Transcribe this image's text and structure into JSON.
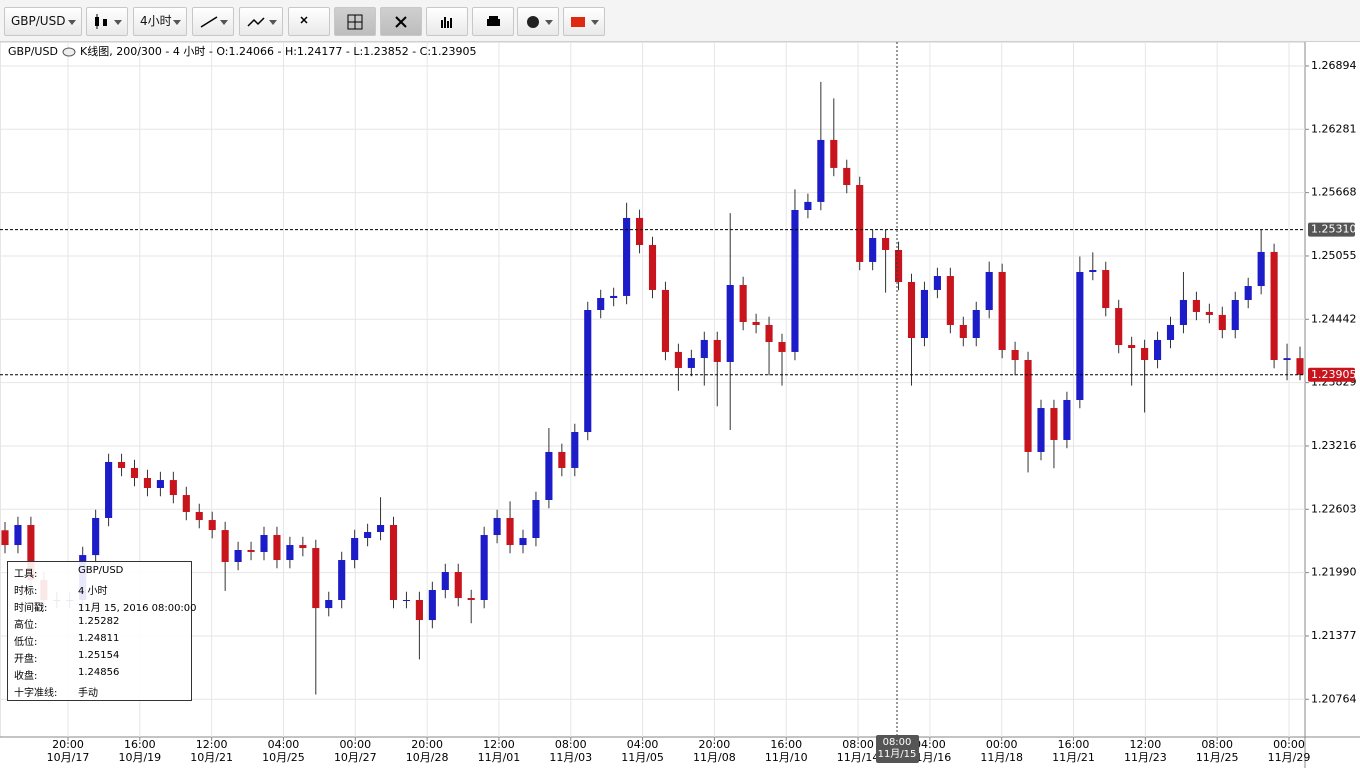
{
  "toolbar": {
    "symbol": "GBP/USD",
    "timeframe": "4小时"
  },
  "header": {
    "symbol": "GBP/USD",
    "info": "K线图, 200/300 - 4 小时 - O:1.24066 - H:1.24177 - L:1.23852 - C:1.23905"
  },
  "tooltip": {
    "rows": [
      [
        "工具:",
        "GBP/USD"
      ],
      [
        "时标:",
        "4 小时"
      ],
      [
        "时间戳:",
        "11月 15, 2016 08:00:00"
      ],
      [
        "高位:",
        "1.25282"
      ],
      [
        "低位:",
        "1.24811"
      ],
      [
        "开盘:",
        "1.25154"
      ],
      [
        "收盘:",
        "1.24856"
      ],
      [
        "十字准线:",
        "手动"
      ]
    ]
  },
  "crosshair": {
    "time": "08:00",
    "date": "11月/15"
  },
  "chart_data": {
    "type": "candlestick",
    "up_color": "#1c1cc8",
    "down_color": "#c8141c",
    "ylim": [
      1.20399,
      1.27126
    ],
    "yticks": [
      1.26894,
      1.26281,
      1.25668,
      1.25055,
      1.24442,
      1.23829,
      1.23216,
      1.22603,
      {
        "value": 1.2199,
        "label": "1.21990"
      },
      1.21377,
      1.20764
    ],
    "grid": true,
    "xlabels": [
      [
        "20:00",
        "10月/17"
      ],
      [
        "16:00",
        "10月/19"
      ],
      [
        "12:00",
        "10月/21"
      ],
      [
        "04:00",
        "10月/25"
      ],
      [
        "00:00",
        "10月/27"
      ],
      [
        "20:00",
        "10月/28"
      ],
      [
        "12:00",
        "11月/01"
      ],
      [
        "08:00",
        "11月/03"
      ],
      [
        "04:00",
        "11月/05"
      ],
      [
        "20:00",
        "11月/08"
      ],
      [
        "16:00",
        "11月/10"
      ],
      [
        "08:00",
        "11月/14"
      ],
      [
        "04:00",
        "11月/16"
      ],
      [
        "00:00",
        "11月/18"
      ],
      [
        "16:00",
        "11月/21"
      ],
      [
        "12:00",
        "11月/23"
      ],
      [
        "08:00",
        "11月/25"
      ],
      [
        "00:00",
        "11月/29"
      ]
    ],
    "hlines": [
      {
        "value": 1.2531,
        "label": "1.25310",
        "color": "#555"
      },
      {
        "value": 1.23905,
        "label": "1.23905",
        "color": "#c8141c"
      }
    ],
    "open": [
      1.224,
      1.22257,
      1.22451,
      1.21918,
      1.21725,
      1.21725,
      1.21725,
      1.2216,
      1.22519,
      1.23061,
      1.23003,
      1.22906,
      1.22809,
      1.22886,
      1.22741,
      1.22577,
      1.22499,
      1.22402,
      1.22093,
      1.22209,
      1.2219,
      1.22354,
      1.22112,
      1.22257,
      1.22228,
      1.21647,
      1.21725,
      1.22112,
      1.22325,
      1.22383,
      1.22451,
      1.21725,
      1.21725,
      1.21531,
      1.21822,
      1.21996,
      1.21744,
      1.21725,
      1.22354,
      1.22519,
      1.22257,
      1.22325,
      1.22693,
      1.23158,
      1.23003,
      1.23351,
      1.24532,
      1.24648,
      1.24668,
      1.25423,
      1.25161,
      1.24726,
      1.24126,
      1.23971,
      1.24067,
      1.24242,
      1.24029,
      1.24774,
      1.24416,
      1.24387,
      1.24222,
      1.24126,
      1.255,
      1.25578,
      1.26178,
      1.25907,
      1.25742,
      1.24997,
      1.25229,
      1.25113,
      1.24803,
      1.24261,
      1.24726,
      1.24861,
      1.24387,
      1.24261,
      1.24532,
      1.249,
      1.24145,
      1.24048,
      1.23158,
      1.23583,
      1.23274,
      1.23661,
      1.249,
      1.24919,
      1.24551,
      1.24193,
      1.24164,
      1.24048,
      1.24242,
      1.24387,
      1.24629,
      1.24513,
      1.24484,
      1.24338,
      1.24629,
      1.24764,
      1.25094,
      1.24048,
      1.24066
    ],
    "high": [
      1.2248,
      1.22531,
      1.22531,
      1.21998,
      1.21805,
      1.21805,
      1.2224,
      1.22599,
      1.23141,
      1.23141,
      1.23083,
      1.22986,
      1.22966,
      1.22966,
      1.22821,
      1.22657,
      1.22579,
      1.22482,
      1.22289,
      1.22289,
      1.22434,
      1.22434,
      1.22337,
      1.22337,
      1.22308,
      1.21805,
      1.22192,
      1.22405,
      1.22463,
      1.2272,
      1.22531,
      1.21805,
      1.21805,
      1.21902,
      1.22076,
      1.22076,
      1.21824,
      1.22434,
      1.22599,
      1.2268,
      1.22405,
      1.22773,
      1.2339,
      1.23238,
      1.23431,
      1.24612,
      1.24728,
      1.24748,
      1.2557,
      1.25503,
      1.25241,
      1.24806,
      1.24206,
      1.24147,
      1.24322,
      1.24322,
      1.2547,
      1.24854,
      1.24496,
      1.24467,
      1.24302,
      1.257,
      1.25658,
      1.2674,
      1.2658,
      1.25987,
      1.25822,
      1.25309,
      1.25309,
      1.25193,
      1.24883,
      1.24806,
      1.24941,
      1.24941,
      1.24467,
      1.24612,
      1.25,
      1.2498,
      1.24225,
      1.24128,
      1.23663,
      1.23663,
      1.23741,
      1.2505,
      1.2509,
      1.24999,
      1.24631,
      1.24273,
      1.24244,
      1.24322,
      1.24467,
      1.249,
      1.24709,
      1.24593,
      1.24564,
      1.24709,
      1.24844,
      1.2531,
      1.25174,
      1.24206,
      1.24177
    ],
    "low": [
      1.22177,
      1.22177,
      1.21838,
      1.21645,
      1.21645,
      1.21645,
      1.21645,
      1.2208,
      1.22439,
      1.22923,
      1.22826,
      1.22729,
      1.22729,
      1.22661,
      1.22497,
      1.22419,
      1.22322,
      1.21813,
      1.22013,
      1.2211,
      1.2211,
      1.22032,
      1.22032,
      1.22148,
      1.2081,
      1.21567,
      1.21645,
      1.22032,
      1.22245,
      1.22303,
      1.21645,
      1.21645,
      1.2115,
      1.21451,
      1.21742,
      1.21664,
      1.215,
      1.21645,
      1.22274,
      1.22177,
      1.22177,
      1.22245,
      1.22613,
      1.22923,
      1.22923,
      1.23271,
      1.24452,
      1.24568,
      1.24588,
      1.25081,
      1.24646,
      1.24046,
      1.2375,
      1.23891,
      1.238,
      1.236,
      1.2337,
      1.24336,
      1.24307,
      1.239,
      1.238,
      1.24046,
      1.2542,
      1.25498,
      1.25827,
      1.25662,
      1.24917,
      1.24917,
      1.247,
      1.24723,
      1.238,
      1.24181,
      1.24646,
      1.24307,
      1.24181,
      1.24181,
      1.24452,
      1.24065,
      1.239,
      1.2296,
      1.23078,
      1.23,
      1.23194,
      1.23581,
      1.2482,
      1.24471,
      1.24113,
      1.238,
      1.2354,
      1.23968,
      1.24162,
      1.24307,
      1.24433,
      1.24404,
      1.24258,
      1.24258,
      1.24549,
      1.24684,
      1.23968,
      1.23852,
      1.23852
    ],
    "close": [
      1.22257,
      1.22451,
      1.21918,
      1.21725,
      1.21725,
      1.21725,
      1.2216,
      1.22519,
      1.23061,
      1.23003,
      1.22906,
      1.22809,
      1.22886,
      1.22741,
      1.22577,
      1.22499,
      1.22402,
      1.22093,
      1.22209,
      1.2219,
      1.22354,
      1.22112,
      1.22257,
      1.22228,
      1.21647,
      1.21725,
      1.22112,
      1.22325,
      1.22383,
      1.22451,
      1.21725,
      1.21725,
      1.21531,
      1.21822,
      1.21996,
      1.21744,
      1.21725,
      1.22354,
      1.22519,
      1.22257,
      1.22325,
      1.22693,
      1.23158,
      1.23003,
      1.23351,
      1.24532,
      1.24648,
      1.24668,
      1.25423,
      1.25161,
      1.24726,
      1.24126,
      1.23971,
      1.24067,
      1.24242,
      1.24029,
      1.24774,
      1.24416,
      1.24387,
      1.24222,
      1.24126,
      1.255,
      1.25578,
      1.26178,
      1.25907,
      1.25742,
      1.24997,
      1.25229,
      1.25113,
      1.24803,
      1.24261,
      1.24726,
      1.24861,
      1.24387,
      1.24261,
      1.24532,
      1.249,
      1.24145,
      1.24048,
      1.23158,
      1.23583,
      1.23274,
      1.23661,
      1.249,
      1.24919,
      1.24551,
      1.24193,
      1.24164,
      1.24048,
      1.24242,
      1.24387,
      1.24629,
      1.24513,
      1.24484,
      1.24338,
      1.24629,
      1.24764,
      1.25094,
      1.24048,
      1.24066,
      1.23905
    ]
  }
}
